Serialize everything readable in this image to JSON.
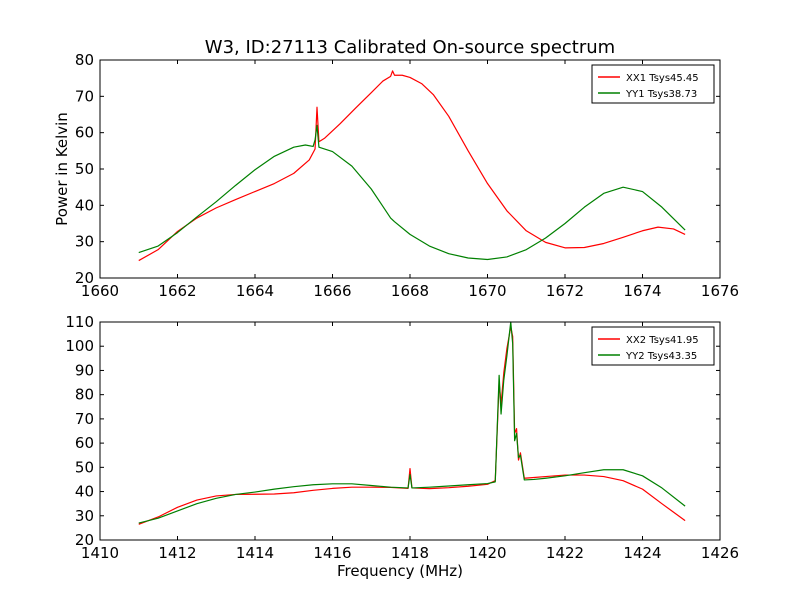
{
  "figure": {
    "title": "W3, ID:27113 Calibrated On-source spectrum"
  },
  "chart_data": [
    {
      "type": "line",
      "title": "W3, ID:27113 Calibrated On-source spectrum",
      "xlabel": "",
      "ylabel": "Power in Kelvin",
      "xlim": [
        1660,
        1676
      ],
      "ylim": [
        20,
        80
      ],
      "xticks": [
        1660,
        1662,
        1664,
        1666,
        1668,
        1670,
        1672,
        1674,
        1676
      ],
      "yticks": [
        20,
        30,
        40,
        50,
        60,
        70,
        80
      ],
      "grid": false,
      "legend": "top-right",
      "series": [
        {
          "name": "XX1 Tsys45.45",
          "color": "#ff0000",
          "points": [
            [
              1661.0,
              24.8
            ],
            [
              1661.5,
              27.8
            ],
            [
              1662.0,
              32.8
            ],
            [
              1662.5,
              36.5
            ],
            [
              1663.0,
              39.3
            ],
            [
              1663.5,
              41.6
            ],
            [
              1664.0,
              43.8
            ],
            [
              1664.5,
              46.0
            ],
            [
              1665.0,
              48.8
            ],
            [
              1665.4,
              52.5
            ],
            [
              1665.55,
              55.5
            ],
            [
              1665.6,
              67.0
            ],
            [
              1665.65,
              57.5
            ],
            [
              1665.8,
              58.5
            ],
            [
              1666.2,
              62.5
            ],
            [
              1666.6,
              66.8
            ],
            [
              1667.0,
              71.0
            ],
            [
              1667.3,
              74.2
            ],
            [
              1667.5,
              75.5
            ],
            [
              1667.55,
              77.0
            ],
            [
              1667.6,
              75.8
            ],
            [
              1667.8,
              75.8
            ],
            [
              1668.0,
              75.2
            ],
            [
              1668.3,
              73.5
            ],
            [
              1668.6,
              70.5
            ],
            [
              1669.0,
              64.5
            ],
            [
              1669.5,
              55.0
            ],
            [
              1670.0,
              46.0
            ],
            [
              1670.5,
              38.5
            ],
            [
              1671.0,
              33.0
            ],
            [
              1671.5,
              29.8
            ],
            [
              1672.0,
              28.3
            ],
            [
              1672.5,
              28.4
            ],
            [
              1673.0,
              29.5
            ],
            [
              1673.5,
              31.2
            ],
            [
              1674.0,
              33.0
            ],
            [
              1674.4,
              34.0
            ],
            [
              1674.8,
              33.5
            ],
            [
              1675.1,
              32.0
            ]
          ]
        },
        {
          "name": "YY1 Tsys38.73",
          "color": "#008000",
          "points": [
            [
              1661.0,
              27.0
            ],
            [
              1661.5,
              28.8
            ],
            [
              1662.0,
              32.5
            ],
            [
              1662.5,
              36.8
            ],
            [
              1663.0,
              41.0
            ],
            [
              1663.5,
              45.5
            ],
            [
              1664.0,
              49.8
            ],
            [
              1664.5,
              53.5
            ],
            [
              1665.0,
              56.0
            ],
            [
              1665.3,
              56.6
            ],
            [
              1665.5,
              56.2
            ],
            [
              1665.55,
              58.0
            ],
            [
              1665.6,
              62.0
            ],
            [
              1665.65,
              56.0
            ],
            [
              1666.0,
              54.8
            ],
            [
              1666.5,
              50.8
            ],
            [
              1667.0,
              44.5
            ],
            [
              1667.5,
              36.5
            ],
            [
              1667.6,
              35.5
            ],
            [
              1668.0,
              32.0
            ],
            [
              1668.5,
              28.8
            ],
            [
              1669.0,
              26.7
            ],
            [
              1669.5,
              25.5
            ],
            [
              1670.0,
              25.1
            ],
            [
              1670.5,
              25.8
            ],
            [
              1671.0,
              27.8
            ],
            [
              1671.5,
              31.0
            ],
            [
              1672.0,
              35.0
            ],
            [
              1672.5,
              39.5
            ],
            [
              1673.0,
              43.3
            ],
            [
              1673.5,
              45.0
            ],
            [
              1674.0,
              43.8
            ],
            [
              1674.5,
              39.5
            ],
            [
              1675.1,
              33.2
            ]
          ]
        }
      ]
    },
    {
      "type": "line",
      "title": "",
      "xlabel": "Frequency (MHz)",
      "ylabel": "",
      "xlim": [
        1410,
        1426
      ],
      "ylim": [
        20,
        110
      ],
      "xticks": [
        1410,
        1412,
        1414,
        1416,
        1418,
        1420,
        1422,
        1424,
        1426
      ],
      "yticks": [
        20,
        30,
        40,
        50,
        60,
        70,
        80,
        90,
        100,
        110
      ],
      "grid": false,
      "legend": "top-right",
      "series": [
        {
          "name": "XX2 Tsys41.95",
          "color": "#ff0000",
          "points": [
            [
              1411.0,
              26.5
            ],
            [
              1411.5,
              29.5
            ],
            [
              1412.0,
              33.5
            ],
            [
              1412.5,
              36.5
            ],
            [
              1413.0,
              38.2
            ],
            [
              1413.5,
              38.8
            ],
            [
              1414.0,
              38.9
            ],
            [
              1414.5,
              39.0
            ],
            [
              1415.0,
              39.5
            ],
            [
              1415.5,
              40.5
            ],
            [
              1416.0,
              41.3
            ],
            [
              1416.5,
              41.8
            ],
            [
              1417.0,
              41.8
            ],
            [
              1417.5,
              41.7
            ],
            [
              1417.95,
              41.3
            ],
            [
              1418.0,
              49.5
            ],
            [
              1418.05,
              41.5
            ],
            [
              1418.5,
              41.2
            ],
            [
              1419.0,
              41.6
            ],
            [
              1419.5,
              42.2
            ],
            [
              1420.0,
              43.0
            ],
            [
              1420.2,
              44.5
            ],
            [
              1420.3,
              85.0
            ],
            [
              1420.35,
              76.0
            ],
            [
              1420.42,
              89.0
            ],
            [
              1420.5,
              99.0
            ],
            [
              1420.6,
              108.0
            ],
            [
              1420.65,
              104.0
            ],
            [
              1420.7,
              64.0
            ],
            [
              1420.75,
              66.0
            ],
            [
              1420.8,
              53.0
            ],
            [
              1420.85,
              56.0
            ],
            [
              1420.95,
              45.5
            ],
            [
              1421.2,
              45.8
            ],
            [
              1421.5,
              46.2
            ],
            [
              1422.0,
              46.8
            ],
            [
              1422.5,
              46.8
            ],
            [
              1423.0,
              46.2
            ],
            [
              1423.5,
              44.5
            ],
            [
              1424.0,
              41.0
            ],
            [
              1424.5,
              35.0
            ],
            [
              1425.1,
              28.0
            ]
          ]
        },
        {
          "name": "YY2 Tsys43.35",
          "color": "#008000",
          "points": [
            [
              1411.0,
              27.0
            ],
            [
              1411.5,
              29.0
            ],
            [
              1412.0,
              32.0
            ],
            [
              1412.5,
              35.0
            ],
            [
              1413.0,
              37.2
            ],
            [
              1413.5,
              38.8
            ],
            [
              1414.0,
              39.8
            ],
            [
              1414.5,
              41.0
            ],
            [
              1415.0,
              42.0
            ],
            [
              1415.5,
              42.8
            ],
            [
              1416.0,
              43.2
            ],
            [
              1416.5,
              43.2
            ],
            [
              1417.0,
              42.5
            ],
            [
              1417.5,
              41.8
            ],
            [
              1417.95,
              41.5
            ],
            [
              1418.0,
              47.0
            ],
            [
              1418.05,
              41.5
            ],
            [
              1418.5,
              41.8
            ],
            [
              1419.0,
              42.3
            ],
            [
              1419.5,
              42.8
            ],
            [
              1420.0,
              43.3
            ],
            [
              1420.2,
              44.0
            ],
            [
              1420.3,
              88.0
            ],
            [
              1420.35,
              72.0
            ],
            [
              1420.42,
              86.0
            ],
            [
              1420.5,
              96.0
            ],
            [
              1420.6,
              110.0
            ],
            [
              1420.65,
              101.0
            ],
            [
              1420.7,
              61.0
            ],
            [
              1420.75,
              64.0
            ],
            [
              1420.8,
              54.0
            ],
            [
              1420.85,
              55.0
            ],
            [
              1420.95,
              44.8
            ],
            [
              1421.2,
              45.0
            ],
            [
              1421.5,
              45.5
            ],
            [
              1422.0,
              46.5
            ],
            [
              1422.5,
              47.8
            ],
            [
              1423.0,
              49.0
            ],
            [
              1423.5,
              49.0
            ],
            [
              1424.0,
              46.5
            ],
            [
              1424.5,
              41.5
            ],
            [
              1425.1,
              34.0
            ]
          ]
        }
      ]
    }
  ]
}
